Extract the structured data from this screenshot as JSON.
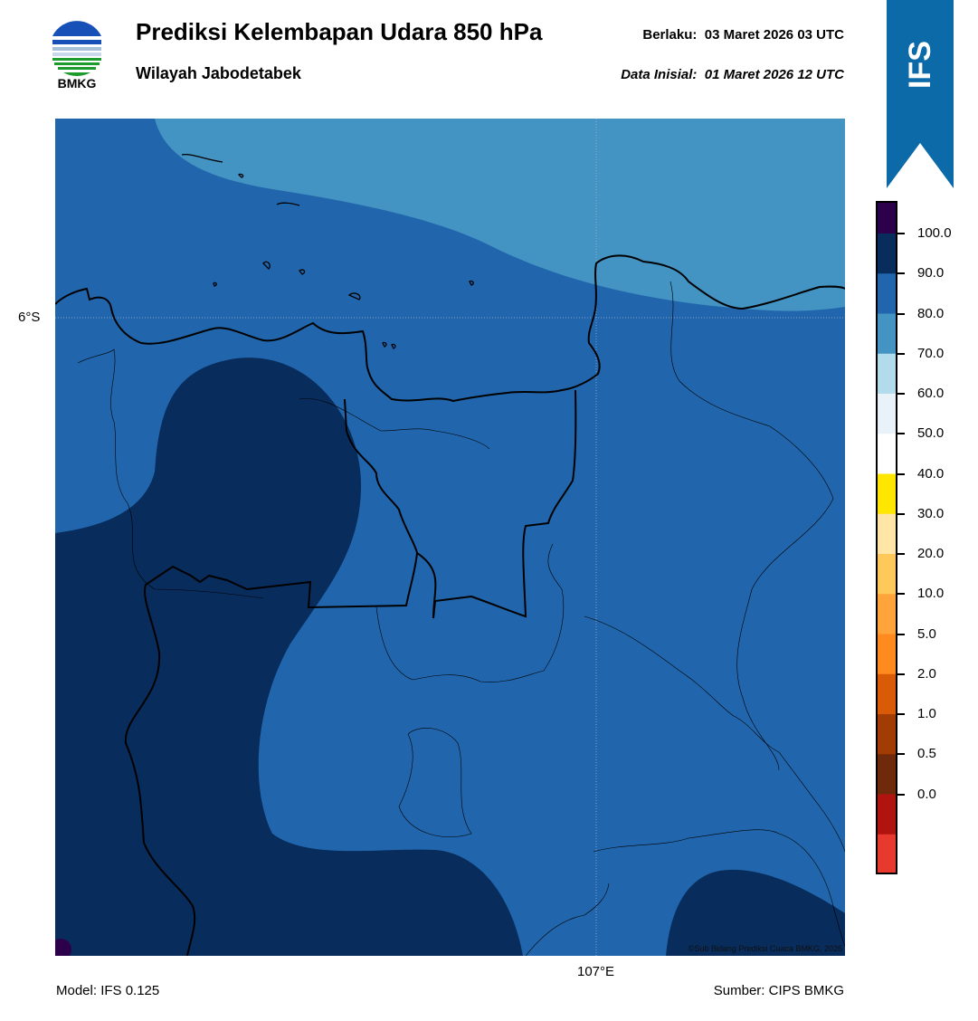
{
  "header": {
    "logo_text": "BMKG",
    "title": "Prediksi Kelembapan Udara 850 hPa",
    "subtitle": "Wilayah Jabodetabek",
    "valid_label": "Berlaku:",
    "valid_value": "03 Maret 2026 03 UTC",
    "init_label": "Data Inisial:",
    "init_value": "01 Maret 2026 12 UTC"
  },
  "banner": {
    "text": "IFS",
    "color": "#0b6aa7"
  },
  "map": {
    "lat_label": "6°S",
    "lon_label": "107°E",
    "copyright": "©Sub Bidang Prediksi Cuaca BMKG, 2026",
    "colors": {
      "band_70_80": "#4393c3",
      "band_80_90": "#2166ac",
      "band_90_100": "#082c5c",
      "band_above_100": "#2d004b"
    }
  },
  "colorbar": {
    "ticks": [
      "100.0",
      "90.0",
      "80.0",
      "70.0",
      "60.0",
      "50.0",
      "40.0",
      "30.0",
      "20.0",
      "10.0",
      "5.0",
      "2.0",
      "1.0",
      "0.5",
      "0.0"
    ],
    "colors_top_to_bottom": [
      "#2d004b",
      "#082c5c",
      "#2166ac",
      "#4393c3",
      "#b2dceb",
      "#e8f2f8",
      "#ffffff",
      "#ffe600",
      "#ffe6a6",
      "#ffc85a",
      "#ffa43a",
      "#ff8b1f",
      "#d95b07",
      "#a23c05",
      "#6e2a0a",
      "#b1140f",
      "#e8392f"
    ]
  },
  "footer": {
    "model": "Model: IFS 0.125",
    "source": "Sumber: CIPS BMKG"
  }
}
